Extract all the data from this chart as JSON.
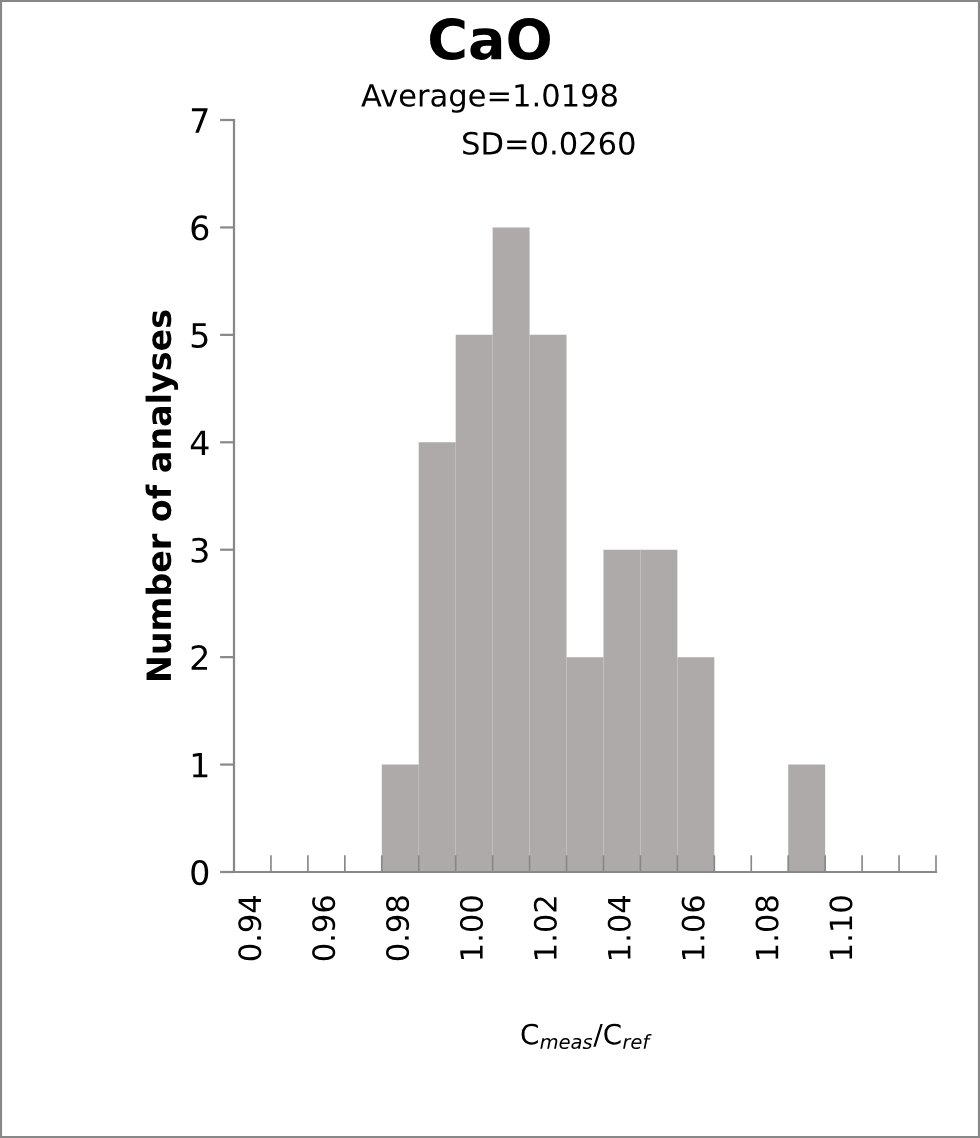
{
  "chart_data": {
    "type": "bar",
    "title": "CaO",
    "xlabel": "C$_{meas}$/C$_{ref}$",
    "ylabel": "Number of analyses",
    "annotations": [
      "Average=1.0198",
      "SD=0.0260"
    ],
    "categories": [
      "0.94",
      null,
      "0.96",
      null,
      "0.98",
      null,
      "1.00",
      null,
      "1.02",
      null,
      "1.04",
      null,
      "1.06",
      null,
      "1.08",
      null,
      "1.10",
      null,
      null
    ],
    "values": [
      0,
      0,
      0,
      0,
      1,
      4,
      5,
      6,
      5,
      2,
      3,
      3,
      2,
      0,
      0,
      1,
      0,
      0,
      0
    ],
    "color": "#aeaaaa",
    "ylim": [
      0,
      7
    ],
    "yticks": [
      0,
      1,
      2,
      3,
      4,
      5,
      6,
      7
    ],
    "grid": false,
    "legend": false
  }
}
